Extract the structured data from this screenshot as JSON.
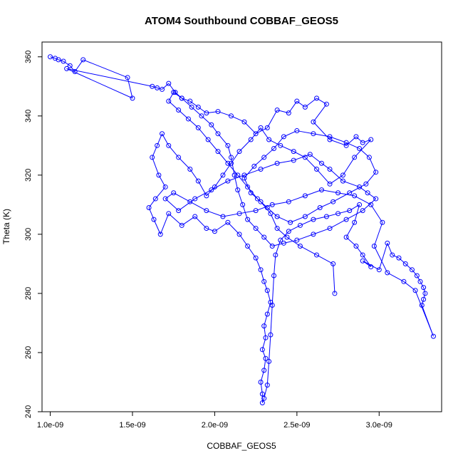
{
  "chart_data": {
    "type": "scatter",
    "title": "ATOM4 Southbound COBBAF_GEOS5",
    "xlabel": "COBBAF_GEOS5",
    "ylabel": "Theta (K)",
    "xlim": [
      9.5e-10,
      3.38e-09
    ],
    "ylim": [
      240,
      365
    ],
    "x_ticks": [
      1e-09,
      1.5e-09,
      2e-09,
      2.5e-09,
      3e-09
    ],
    "x_tick_labels": [
      "1.0e-09",
      "1.5e-09",
      "2.0e-09",
      "2.5e-09",
      "3.0e-09"
    ],
    "y_ticks": [
      240,
      260,
      280,
      300,
      320,
      340,
      360
    ],
    "y_tick_labels": [
      "240",
      "260",
      "280",
      "300",
      "320",
      "340",
      "360"
    ],
    "grid": false,
    "series_color": "#0000ff",
    "marker": "open-circle",
    "connected": true,
    "series": [
      {
        "points": [
          [
            1e-09,
            360
          ],
          [
            1.03e-09,
            359.5
          ],
          [
            1.05e-09,
            359
          ],
          [
            1.08e-09,
            358.5
          ],
          [
            1.12e-09,
            357
          ],
          [
            1.15e-09,
            355
          ],
          [
            1.2e-09,
            359
          ],
          [
            1.47e-09,
            353
          ],
          [
            1.5e-09,
            346
          ],
          [
            1.1e-09,
            356
          ],
          [
            1.62e-09,
            350
          ],
          [
            1.65e-09,
            349.5
          ],
          [
            1.68e-09,
            349
          ],
          [
            1.72e-09,
            351
          ],
          [
            1.76e-09,
            348
          ],
          [
            1.8e-09,
            346
          ],
          [
            1.85e-09,
            345
          ],
          [
            1.9e-09,
            343
          ],
          [
            1.95e-09,
            341
          ],
          [
            2.02e-09,
            341.5
          ],
          [
            2.1e-09,
            340
          ],
          [
            2.18e-09,
            338
          ],
          [
            2.25e-09,
            334
          ],
          [
            2.32e-09,
            336
          ],
          [
            2.38e-09,
            342
          ],
          [
            2.45e-09,
            341
          ],
          [
            2.5e-09,
            345
          ],
          [
            2.55e-09,
            343
          ],
          [
            2.62e-09,
            346
          ],
          [
            2.68e-09,
            344
          ],
          [
            2.6e-09,
            338
          ],
          [
            2.7e-09,
            332
          ],
          [
            2.8e-09,
            330
          ],
          [
            2.86e-09,
            333
          ],
          [
            2.9e-09,
            331
          ],
          [
            2.95e-09,
            332
          ],
          [
            2.85e-09,
            326
          ],
          [
            2.78e-09,
            320
          ],
          [
            2.7e-09,
            317
          ],
          [
            2.62e-09,
            322
          ],
          [
            2.55e-09,
            326
          ],
          [
            2.48e-09,
            328
          ],
          [
            2.4e-09,
            330
          ],
          [
            2.33e-09,
            332
          ],
          [
            2.28e-09,
            336
          ],
          [
            2.22e-09,
            332
          ],
          [
            2.15e-09,
            328
          ],
          [
            2.1e-09,
            324
          ],
          [
            2.05e-09,
            320
          ],
          [
            2e-09,
            316
          ],
          [
            1.95e-09,
            313
          ],
          [
            1.9e-09,
            318
          ],
          [
            1.85e-09,
            322
          ],
          [
            1.78e-09,
            326
          ],
          [
            1.72e-09,
            330
          ],
          [
            1.68e-09,
            334
          ],
          [
            1.65e-09,
            330
          ],
          [
            1.62e-09,
            326
          ],
          [
            1.66e-09,
            320
          ],
          [
            1.7e-09,
            316
          ],
          [
            1.64e-09,
            312
          ],
          [
            1.6e-09,
            309
          ],
          [
            1.63e-09,
            305
          ],
          [
            1.67e-09,
            300
          ],
          [
            1.72e-09,
            307
          ],
          [
            1.8e-09,
            303
          ],
          [
            1.88e-09,
            306
          ],
          [
            1.95e-09,
            302
          ],
          [
            2e-09,
            301
          ],
          [
            2.08e-09,
            304
          ],
          [
            2.15e-09,
            300
          ],
          [
            2.2e-09,
            296
          ],
          [
            2.25e-09,
            292
          ],
          [
            2.28e-09,
            288
          ],
          [
            2.3e-09,
            284
          ],
          [
            2.32e-09,
            281
          ],
          [
            2.34e-09,
            277
          ],
          [
            2.32e-09,
            273
          ],
          [
            2.3e-09,
            269
          ],
          [
            2.31e-09,
            265
          ],
          [
            2.29e-09,
            261
          ],
          [
            2.31e-09,
            258
          ],
          [
            2.3e-09,
            254
          ],
          [
            2.28e-09,
            250
          ],
          [
            2.29e-09,
            246
          ],
          [
            2.29e-09,
            243
          ],
          [
            2.3e-09,
            244.5
          ],
          [
            2.32e-09,
            249
          ],
          [
            2.33e-09,
            257
          ],
          [
            2.34e-09,
            266
          ],
          [
            2.35e-09,
            276
          ],
          [
            2.36e-09,
            286
          ],
          [
            2.37e-09,
            293
          ],
          [
            2.4e-09,
            298
          ],
          [
            2.45e-09,
            301
          ],
          [
            2.52e-09,
            303
          ],
          [
            2.6e-09,
            305
          ],
          [
            2.68e-09,
            306
          ],
          [
            2.75e-09,
            307
          ],
          [
            2.82e-09,
            308
          ],
          [
            2.88e-09,
            310
          ],
          [
            2.85e-09,
            304
          ],
          [
            2.8e-09,
            299
          ],
          [
            2.86e-09,
            296
          ],
          [
            2.9e-09,
            293
          ],
          [
            2.95e-09,
            289
          ],
          [
            2.9e-09,
            291
          ],
          [
            3e-09,
            288
          ],
          [
            3.05e-09,
            297
          ],
          [
            3.08e-09,
            293
          ],
          [
            3.12e-09,
            292
          ],
          [
            3.16e-09,
            290
          ],
          [
            3.2e-09,
            288
          ],
          [
            3.23e-09,
            286
          ],
          [
            3.25e-09,
            284
          ],
          [
            3.27e-09,
            282
          ],
          [
            3.28e-09,
            280
          ],
          [
            3.27e-09,
            278
          ],
          [
            3.26e-09,
            276
          ],
          [
            3.33e-09,
            265.5
          ],
          [
            3.22e-09,
            281
          ],
          [
            3.15e-09,
            284
          ],
          [
            3.05e-09,
            287
          ],
          [
            2.97e-09,
            296
          ],
          [
            3.02e-09,
            304
          ],
          [
            2.95e-09,
            310
          ],
          [
            2.85e-09,
            313
          ],
          [
            2.75e-09,
            314
          ],
          [
            2.65e-09,
            315
          ],
          [
            2.55e-09,
            313
          ],
          [
            2.45e-09,
            311
          ],
          [
            2.35e-09,
            310
          ],
          [
            2.25e-09,
            308
          ],
          [
            2.15e-09,
            307
          ],
          [
            2.05e-09,
            306
          ],
          [
            1.95e-09,
            308
          ],
          [
            1.85e-09,
            311
          ],
          [
            1.75e-09,
            314
          ],
          [
            1.7e-09,
            312
          ],
          [
            1.78e-09,
            308
          ],
          [
            1.88e-09,
            312
          ],
          [
            1.98e-09,
            315
          ],
          [
            2.08e-09,
            318
          ],
          [
            2.18e-09,
            320
          ],
          [
            2.28e-09,
            322
          ],
          [
            2.38e-09,
            324
          ],
          [
            2.48e-09,
            325
          ],
          [
            2.58e-09,
            327
          ],
          [
            2.65e-09,
            324
          ],
          [
            2.7e-09,
            322
          ],
          [
            2.78e-09,
            318
          ],
          [
            2.88e-09,
            316
          ],
          [
            2.93e-09,
            314
          ],
          [
            2.98e-09,
            312
          ],
          [
            2.9e-09,
            308
          ],
          [
            2.8e-09,
            305
          ],
          [
            2.7e-09,
            302
          ],
          [
            2.6e-09,
            300
          ],
          [
            2.5e-09,
            298
          ],
          [
            2.42e-09,
            297
          ],
          [
            2.35e-09,
            296
          ],
          [
            2.3e-09,
            299
          ],
          [
            2.25e-09,
            302
          ],
          [
            2.2e-09,
            305
          ],
          [
            2.17e-09,
            310
          ],
          [
            2.14e-09,
            315
          ],
          [
            2.12e-09,
            320
          ],
          [
            2.1e-09,
            326
          ],
          [
            2.08e-09,
            330
          ],
          [
            2.02e-09,
            334
          ],
          [
            1.98e-09,
            337
          ],
          [
            1.92e-09,
            340
          ],
          [
            1.86e-09,
            343
          ],
          [
            1.8e-09,
            346
          ],
          [
            1.75e-09,
            348
          ],
          [
            1.72e-09,
            345
          ],
          [
            1.78e-09,
            342
          ],
          [
            1.84e-09,
            339
          ],
          [
            1.9e-09,
            336
          ],
          [
            1.96e-09,
            332
          ],
          [
            2.02e-09,
            328
          ],
          [
            2.08e-09,
            324
          ],
          [
            2.14e-09,
            320
          ],
          [
            2.2e-09,
            316
          ],
          [
            2.26e-09,
            312
          ],
          [
            2.32e-09,
            309
          ],
          [
            2.38e-09,
            306
          ],
          [
            2.46e-09,
            304
          ],
          [
            2.55e-09,
            306
          ],
          [
            2.64e-09,
            309
          ],
          [
            2.72e-09,
            311
          ],
          [
            2.82e-09,
            314
          ],
          [
            2.92e-09,
            317
          ],
          [
            2.98e-09,
            321
          ],
          [
            2.94e-09,
            326
          ],
          [
            2.88e-09,
            329
          ],
          [
            2.8e-09,
            331
          ],
          [
            2.7e-09,
            333
          ],
          [
            2.6e-09,
            334
          ],
          [
            2.5e-09,
            335
          ],
          [
            2.42e-09,
            333
          ],
          [
            2.36e-09,
            329
          ],
          [
            2.3e-09,
            326
          ],
          [
            2.24e-09,
            323
          ],
          [
            2.18e-09,
            319
          ],
          [
            2.22e-09,
            314
          ],
          [
            2.28e-09,
            311
          ],
          [
            2.34e-09,
            307
          ],
          [
            2.38e-09,
            302
          ],
          [
            2.44e-09,
            299
          ],
          [
            2.52e-09,
            296
          ],
          [
            2.62e-09,
            293
          ],
          [
            2.72e-09,
            290
          ],
          [
            2.73e-09,
            280
          ]
        ]
      }
    ]
  }
}
